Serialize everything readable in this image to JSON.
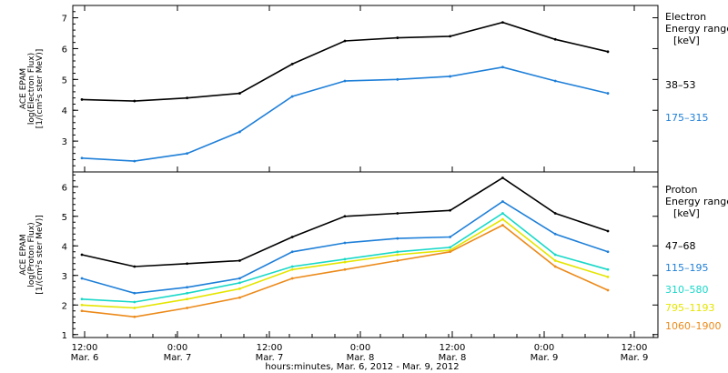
{
  "chart_data": [
    {
      "type": "line",
      "panel": "electron",
      "ylabel_lines": [
        "ACE EPAM",
        "log(Electron Flux)",
        "[1/(cm²s ster MeV)]"
      ],
      "ylim": [
        2.0,
        7.4
      ],
      "yticks": [
        "3",
        "4",
        "5",
        "6",
        "7"
      ],
      "legend_title": [
        "Electron",
        "Energy range",
        "[keV]"
      ],
      "x": [
        0,
        8,
        16,
        24,
        32,
        40,
        48,
        56,
        64,
        72,
        80
      ],
      "series": [
        {
          "name": "38–53",
          "color": "#000000",
          "values": [
            4.35,
            4.3,
            4.4,
            4.55,
            5.5,
            6.25,
            6.35,
            6.4,
            6.85,
            6.3,
            5.9
          ]
        },
        {
          "name": "175–315",
          "color": "#1e7fd8",
          "values": [
            2.45,
            2.35,
            2.6,
            3.3,
            4.45,
            4.95,
            5.0,
            5.1,
            5.4,
            4.95,
            4.55
          ]
        }
      ]
    },
    {
      "type": "line",
      "panel": "proton",
      "ylabel_lines": [
        "ACE EPAM",
        "log(Proton Flux)",
        "[1/(cm²s ster MeV)]"
      ],
      "ylim": [
        0.9,
        6.5
      ],
      "yticks": [
        "1",
        "2",
        "3",
        "4",
        "5",
        "6"
      ],
      "legend_title": [
        "Proton",
        "Energy range",
        "[keV]"
      ],
      "x": [
        0,
        8,
        16,
        24,
        32,
        40,
        48,
        56,
        64,
        72,
        80
      ],
      "series": [
        {
          "name": "47–68",
          "color": "#000000",
          "values": [
            3.7,
            3.3,
            3.4,
            3.5,
            4.3,
            5.0,
            5.1,
            5.2,
            6.3,
            5.1,
            4.5
          ]
        },
        {
          "name": "115–195",
          "color": "#1e7fd8",
          "values": [
            2.9,
            2.4,
            2.6,
            2.9,
            3.8,
            4.1,
            4.25,
            4.3,
            5.5,
            4.4,
            3.8
          ]
        },
        {
          "name": "310–580",
          "color": "#18d8c8",
          "values": [
            2.2,
            2.1,
            2.4,
            2.75,
            3.3,
            3.55,
            3.8,
            3.95,
            5.1,
            3.7,
            3.2
          ]
        },
        {
          "name": "795–1193",
          "color": "#e5e500",
          "values": [
            2.0,
            1.9,
            2.2,
            2.55,
            3.2,
            3.45,
            3.7,
            3.85,
            4.9,
            3.5,
            2.95
          ]
        },
        {
          "name": "1060–1900",
          "color": "#ec8a1a",
          "values": [
            1.8,
            1.6,
            1.9,
            2.25,
            2.9,
            3.2,
            3.5,
            3.8,
            4.7,
            3.3,
            2.5
          ]
        }
      ]
    }
  ],
  "xaxis": {
    "time_ticks": [
      "12:00",
      "0:00",
      "12:00",
      "0:00",
      "12:00",
      "0:00",
      "12:00"
    ],
    "day_labels": [
      "Mar. 6",
      "Mar. 7",
      "Mar. 7",
      "Mar. 8",
      "Mar. 8",
      "Mar. 9",
      "Mar. 9"
    ],
    "title": "hours:minutes, Mar. 6, 2012 - Mar. 9, 2012"
  }
}
